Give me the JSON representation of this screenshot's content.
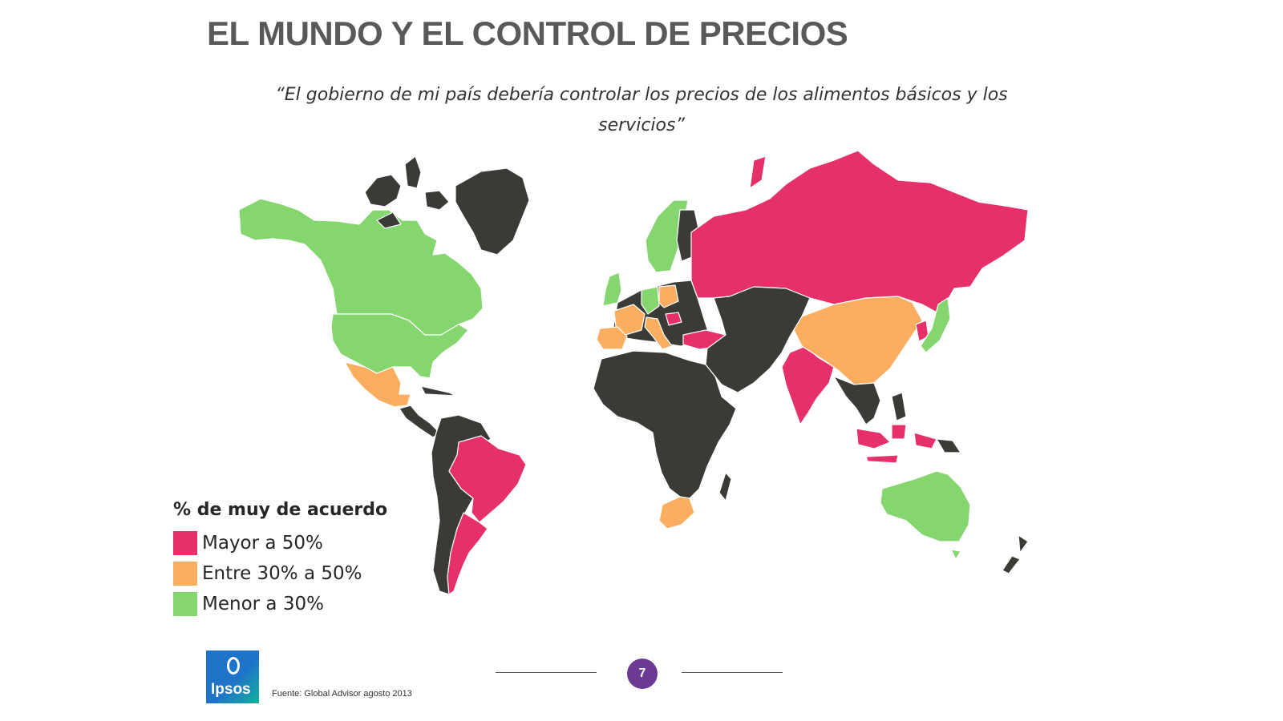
{
  "slide": {
    "title": "EL MUNDO Y EL CONTROL DE PRECIOS",
    "subtitle": "“El gobierno de mi país debería controlar los precios de los alimentos básicos y los servicios”",
    "page_number": "7",
    "source": "Fuente: Global Advisor agosto 2013",
    "logo_text": "Ipsos"
  },
  "legend": {
    "title": "% de muy de acuerdo",
    "items": [
      {
        "label": "Mayor a 50%",
        "color": "#e5306a"
      },
      {
        "label": "Entre 30% a 50%",
        "color": "#fcae60"
      },
      {
        "label": "Menor a 30%",
        "color": "#85d66f"
      }
    ]
  },
  "colors": {
    "no_data": "#3a3b37",
    "high": "#e5306a",
    "mid": "#fcae60",
    "low": "#85d66f",
    "title_text": "#58595b",
    "page_badge": "#6b3a93",
    "logo_blue": "#1f73c9",
    "logo_teal": "#13b19c"
  },
  "map": {
    "regions": [
      {
        "name": "canada",
        "category": "low"
      },
      {
        "name": "usa",
        "category": "low"
      },
      {
        "name": "mexico",
        "category": "mid"
      },
      {
        "name": "brazil",
        "category": "high"
      },
      {
        "name": "argentina",
        "category": "high"
      },
      {
        "name": "great-britain",
        "category": "low"
      },
      {
        "name": "sweden",
        "category": "low"
      },
      {
        "name": "france",
        "category": "mid"
      },
      {
        "name": "spain",
        "category": "mid"
      },
      {
        "name": "italy",
        "category": "mid"
      },
      {
        "name": "germany",
        "category": "low"
      },
      {
        "name": "poland",
        "category": "mid"
      },
      {
        "name": "belgium",
        "category": "mid"
      },
      {
        "name": "hungary",
        "category": "high"
      },
      {
        "name": "russia",
        "category": "high"
      },
      {
        "name": "turkey",
        "category": "high"
      },
      {
        "name": "south-africa",
        "category": "mid"
      },
      {
        "name": "india",
        "category": "high"
      },
      {
        "name": "china",
        "category": "mid"
      },
      {
        "name": "japan",
        "category": "low"
      },
      {
        "name": "south-korea",
        "category": "high"
      },
      {
        "name": "indonesia",
        "category": "high"
      },
      {
        "name": "australia",
        "category": "low"
      }
    ]
  }
}
